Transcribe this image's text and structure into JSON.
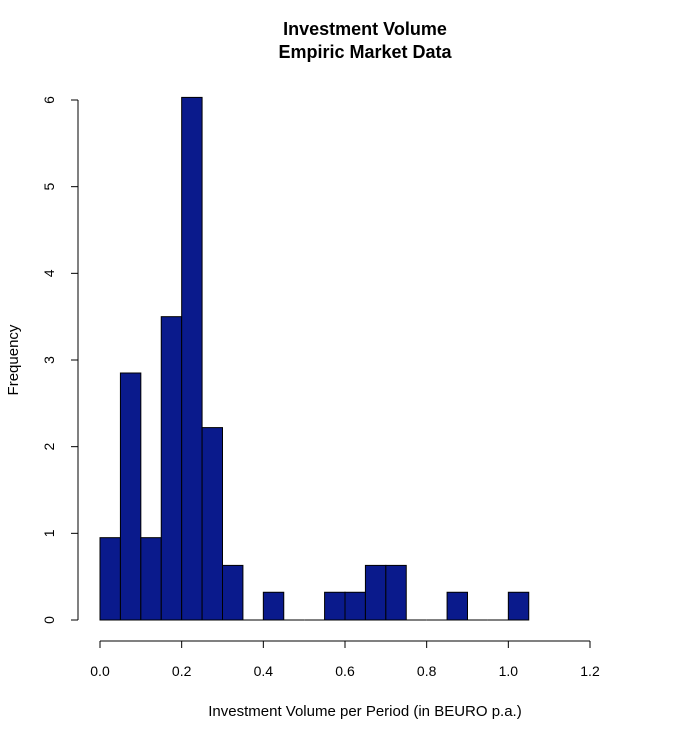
{
  "chart_data": {
    "type": "bar",
    "subtype": "histogram",
    "title_lines": [
      "Investment Volume",
      "Empiric Market Data"
    ],
    "xlabel": "Investment Volume per Period (in BEURO p.a.)",
    "ylabel": "Frequency",
    "xlim": [
      0.0,
      1.2
    ],
    "ylim": [
      0,
      6
    ],
    "x_ticks": [
      "0.0",
      "0.2",
      "0.4",
      "0.6",
      "0.8",
      "1.0",
      "1.2"
    ],
    "x_tick_values": [
      0.0,
      0.2,
      0.4,
      0.6,
      0.8,
      1.0,
      1.2
    ],
    "y_ticks": [
      "0",
      "1",
      "2",
      "3",
      "4",
      "5",
      "6"
    ],
    "y_tick_values": [
      0,
      1,
      2,
      3,
      4,
      5,
      6
    ],
    "bin_width": 0.05,
    "bins": [
      {
        "start": 0.0,
        "end": 0.05,
        "value": 0.95
      },
      {
        "start": 0.05,
        "end": 0.1,
        "value": 2.85
      },
      {
        "start": 0.1,
        "end": 0.15,
        "value": 0.95
      },
      {
        "start": 0.15,
        "end": 0.2,
        "value": 3.5
      },
      {
        "start": 0.2,
        "end": 0.25,
        "value": 6.03
      },
      {
        "start": 0.25,
        "end": 0.3,
        "value": 2.22
      },
      {
        "start": 0.3,
        "end": 0.35,
        "value": 0.63
      },
      {
        "start": 0.35,
        "end": 0.4,
        "value": 0
      },
      {
        "start": 0.4,
        "end": 0.45,
        "value": 0.32
      },
      {
        "start": 0.45,
        "end": 0.5,
        "value": 0
      },
      {
        "start": 0.5,
        "end": 0.55,
        "value": 0
      },
      {
        "start": 0.55,
        "end": 0.6,
        "value": 0.32
      },
      {
        "start": 0.6,
        "end": 0.65,
        "value": 0.32
      },
      {
        "start": 0.65,
        "end": 0.7,
        "value": 0.63
      },
      {
        "start": 0.7,
        "end": 0.75,
        "value": 0.63
      },
      {
        "start": 0.75,
        "end": 0.8,
        "value": 0
      },
      {
        "start": 0.8,
        "end": 0.85,
        "value": 0
      },
      {
        "start": 0.85,
        "end": 0.9,
        "value": 0.32
      },
      {
        "start": 0.9,
        "end": 0.95,
        "value": 0
      },
      {
        "start": 0.95,
        "end": 1.0,
        "value": 0
      },
      {
        "start": 1.0,
        "end": 1.05,
        "value": 0.32
      }
    ],
    "bar_color": "#0a1a8c",
    "grid": false,
    "legend": "none"
  }
}
